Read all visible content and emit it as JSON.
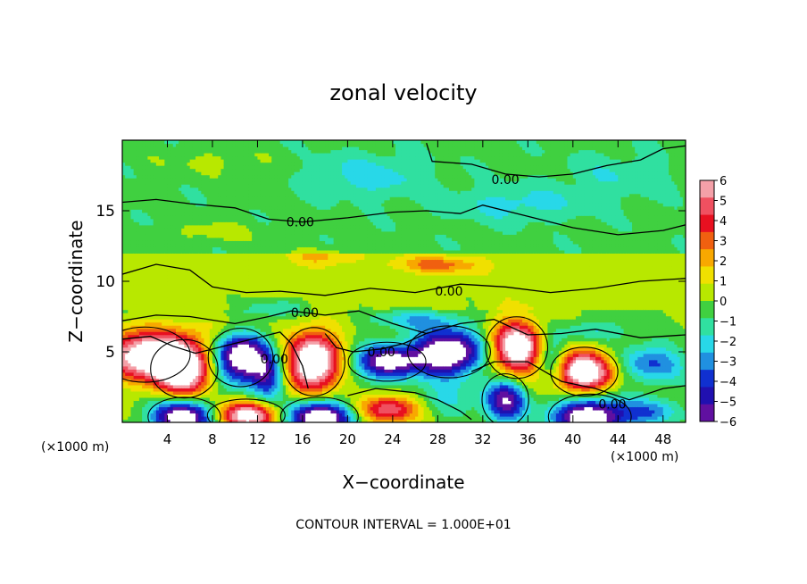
{
  "chart_data": {
    "type": "heatmap",
    "title": "zonal velocity",
    "xlabel": "X−coordinate",
    "ylabel": "Z−coordinate",
    "x_unit_left": "(×1000 m)",
    "x_unit_right": "(×1000 m)",
    "footer": "CONTOUR INTERVAL = 1.000E+01",
    "xlim": [
      0,
      50
    ],
    "ylim": [
      0,
      20
    ],
    "x_ticks": [
      4,
      8,
      12,
      16,
      20,
      24,
      28,
      32,
      36,
      40,
      44,
      48
    ],
    "y_ticks": [
      5,
      10,
      15
    ],
    "colorbar": {
      "min": -6,
      "max": 6,
      "ticks": [
        6,
        5,
        4,
        3,
        2,
        1,
        0,
        -1,
        -2,
        -3,
        -4,
        -5,
        -6
      ],
      "colors": [
        "#f4a0a8",
        "#f05060",
        "#e81020",
        "#f06010",
        "#f8a800",
        "#f0e000",
        "#b8e800",
        "#40d040",
        "#30e0a0",
        "#28d8e8",
        "#2090e0",
        "#1030d0",
        "#2010b0",
        "#6010a0"
      ]
    },
    "field": {
      "nx": 50,
      "nz": 20,
      "note_hidden": ""
    },
    "contour_labels": [
      {
        "text": "0.00",
        "x": 34,
        "z": 17.2
      },
      {
        "text": "0.00",
        "x": 15.8,
        "z": 14.2
      },
      {
        "text": "0.00",
        "x": 29,
        "z": 9.3
      },
      {
        "text": "0.00",
        "x": 16.2,
        "z": 7.8
      },
      {
        "text": "0.00",
        "x": 23,
        "z": 5
      },
      {
        "text": "0.00",
        "x": 13.5,
        "z": 4.5
      },
      {
        "text": "0.00",
        "x": 43.5,
        "z": 1.3
      }
    ],
    "blobs": [
      {
        "x": 2,
        "z": 4.8,
        "rx": 3.5,
        "rz": 1.7,
        "amp": 7.5
      },
      {
        "x": 5.5,
        "z": 3.8,
        "rx": 2.6,
        "rz": 1.8,
        "amp": 8
      },
      {
        "x": 10.5,
        "z": 4.6,
        "rx": 2.5,
        "rz": 1.8,
        "amp": -8
      },
      {
        "x": 17,
        "z": 4.3,
        "rx": 2.4,
        "rz": 2.1,
        "amp": 8.5
      },
      {
        "x": 13,
        "z": 3.2,
        "rx": 1.4,
        "rz": 1.6,
        "amp": -4
      },
      {
        "x": 23.5,
        "z": 4.3,
        "rx": 3.0,
        "rz": 1.2,
        "amp": -6.5
      },
      {
        "x": 29,
        "z": 5.0,
        "rx": 3.2,
        "rz": 1.6,
        "amp": -8
      },
      {
        "x": 35,
        "z": 5.3,
        "rx": 2.4,
        "rz": 1.9,
        "amp": 8
      },
      {
        "x": 41,
        "z": 3.6,
        "rx": 2.6,
        "rz": 1.5,
        "amp": 8
      },
      {
        "x": 38,
        "z": 4.6,
        "rx": 1.4,
        "rz": 1.6,
        "amp": -3.5
      },
      {
        "x": 47,
        "z": 4.2,
        "rx": 3.0,
        "rz": 1.4,
        "amp": -3.5
      },
      {
        "x": 5.5,
        "z": 0.4,
        "rx": 2.8,
        "rz": 1.2,
        "amp": -8
      },
      {
        "x": 11,
        "z": 0.5,
        "rx": 3.0,
        "rz": 1.0,
        "amp": 7
      },
      {
        "x": 17.5,
        "z": 0.4,
        "rx": 3.0,
        "rz": 1.2,
        "amp": -8
      },
      {
        "x": 24,
        "z": 1.0,
        "rx": 3.2,
        "rz": 1.0,
        "amp": 5.5
      },
      {
        "x": 34,
        "z": 1.6,
        "rx": 1.8,
        "rz": 1.6,
        "amp": -6
      },
      {
        "x": 41.5,
        "z": 0.4,
        "rx": 3.2,
        "rz": 1.4,
        "amp": -8
      },
      {
        "x": 28,
        "z": 1.5,
        "rx": 3.0,
        "rz": 1.2,
        "amp": -2.5
      },
      {
        "x": 47,
        "z": 0.8,
        "rx": 2.5,
        "rz": 1.0,
        "amp": -3
      },
      {
        "x": 8,
        "z": 6.5,
        "rx": 4.0,
        "rz": 1.0,
        "amp": 1.2
      },
      {
        "x": 14,
        "z": 8.2,
        "rx": 3.0,
        "rz": 0.6,
        "amp": -2
      },
      {
        "x": 26,
        "z": 7.3,
        "rx": 4.0,
        "rz": 0.7,
        "amp": -2.2
      },
      {
        "x": 42,
        "z": 6.5,
        "rx": 3.5,
        "rz": 0.8,
        "amp": -1.8
      },
      {
        "x": 28,
        "z": 11.2,
        "rx": 4.0,
        "rz": 0.6,
        "amp": 2.5
      },
      {
        "x": 18,
        "z": 11.8,
        "rx": 3.0,
        "rz": 0.6,
        "amp": 1.5
      },
      {
        "x": 8,
        "z": 13.5,
        "rx": 4.0,
        "rz": 0.8,
        "amp": 1.0
      },
      {
        "x": 22,
        "z": 17.5,
        "rx": 5.0,
        "rz": 1.5,
        "amp": -1.6
      },
      {
        "x": 35,
        "z": 15.5,
        "rx": 6.0,
        "rz": 1.2,
        "amp": -1.5
      },
      {
        "x": 44,
        "z": 17.5,
        "rx": 5.0,
        "rz": 1.5,
        "amp": -1.0
      },
      {
        "x": 8,
        "z": 18.5,
        "rx": 5.0,
        "rz": 1.0,
        "amp": 0.8
      }
    ],
    "contours": [
      [
        [
          0,
          15.6
        ],
        [
          3,
          15.8
        ],
        [
          6,
          15.5
        ],
        [
          10,
          15.2
        ],
        [
          13,
          14.4
        ],
        [
          16,
          14.2
        ],
        [
          20,
          14.5
        ],
        [
          24,
          14.9
        ],
        [
          27,
          15.0
        ],
        [
          30,
          14.8
        ],
        [
          32,
          15.4
        ],
        [
          36,
          14.6
        ],
        [
          40,
          13.8
        ],
        [
          44,
          13.3
        ],
        [
          48,
          13.6
        ],
        [
          50,
          14.0
        ]
      ],
      [
        [
          27,
          19.8
        ],
        [
          27.5,
          18.5
        ],
        [
          31,
          18.3
        ],
        [
          34,
          17.6
        ],
        [
          37,
          17.4
        ],
        [
          40,
          17.6
        ],
        [
          43,
          18.2
        ],
        [
          46,
          18.6
        ],
        [
          48,
          19.4
        ],
        [
          50,
          19.6
        ]
      ],
      [
        [
          0,
          10.5
        ],
        [
          3,
          11.2
        ],
        [
          6,
          10.8
        ],
        [
          8,
          9.6
        ],
        [
          11,
          9.2
        ],
        [
          14,
          9.3
        ],
        [
          18,
          9.0
        ],
        [
          22,
          9.5
        ],
        [
          26,
          9.2
        ],
        [
          30,
          9.8
        ],
        [
          34,
          9.6
        ],
        [
          38,
          9.2
        ],
        [
          42,
          9.5
        ],
        [
          46,
          10.0
        ],
        [
          50,
          10.2
        ]
      ],
      [
        [
          0,
          7.2
        ],
        [
          3,
          7.6
        ],
        [
          6,
          7.5
        ],
        [
          10,
          7.0
        ],
        [
          13,
          7.5
        ],
        [
          15,
          7.9
        ],
        [
          18,
          7.6
        ],
        [
          21,
          7.9
        ],
        [
          24,
          7.0
        ],
        [
          27,
          6.3
        ],
        [
          30,
          7.0
        ],
        [
          33,
          7.3
        ],
        [
          36,
          6.2
        ],
        [
          39,
          6.3
        ],
        [
          42,
          6.6
        ],
        [
          46,
          6.0
        ],
        [
          50,
          6.2
        ]
      ],
      [
        [
          0,
          5.9
        ],
        [
          2.5,
          6.1
        ],
        [
          4.5,
          5.4
        ],
        [
          6.5,
          4.9
        ],
        [
          9,
          5.4
        ],
        [
          11.5,
          5.9
        ],
        [
          14,
          6.4
        ],
        [
          15,
          5.6
        ],
        [
          16,
          4.0
        ],
        [
          16.5,
          2.4
        ]
      ],
      [
        [
          18,
          6.3
        ],
        [
          19,
          5.3
        ],
        [
          20.5,
          5.0
        ],
        [
          23,
          5.2
        ],
        [
          25,
          5.6
        ],
        [
          27,
          6.3
        ]
      ],
      [
        [
          31,
          3.6
        ],
        [
          33,
          4.3
        ],
        [
          36,
          4.3
        ],
        [
          39,
          2.9
        ],
        [
          42,
          2.4
        ],
        [
          45,
          1.6
        ],
        [
          48,
          2.4
        ],
        [
          50,
          2.6
        ]
      ],
      [
        [
          20,
          1.9
        ],
        [
          22.5,
          2.4
        ],
        [
          26,
          2.1
        ],
        [
          28,
          1.6
        ],
        [
          30,
          0.8
        ],
        [
          31,
          0.2
        ]
      ]
    ]
  }
}
